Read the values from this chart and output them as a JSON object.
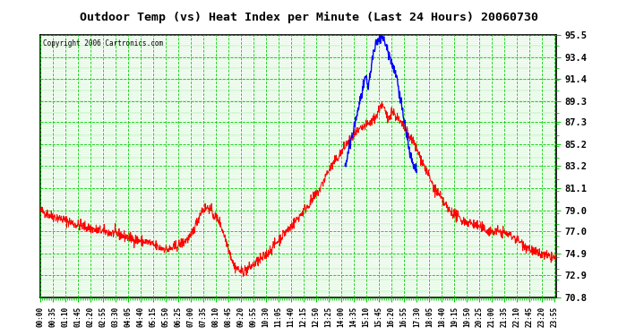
{
  "title": "Outdoor Temp (vs) Heat Index per Minute (Last 24 Hours) 20060730",
  "copyright": "Copyright 2006 Cartronics.com",
  "yticks": [
    70.8,
    72.9,
    74.9,
    77.0,
    79.0,
    81.1,
    83.2,
    85.2,
    87.3,
    89.3,
    91.4,
    93.4,
    95.5
  ],
  "ymin": 70.8,
  "ymax": 95.5,
  "xmin": 0,
  "xmax": 1439,
  "bg_color": "#ffffff",
  "grid_color": "#00cc00",
  "red_color": "#ff0000",
  "blue_color": "#0000ff",
  "title_color": "#000000",
  "border_color": "#000000",
  "noise_seed": 42,
  "red_keyframes": [
    [
      0,
      79.0
    ],
    [
      30,
      78.5
    ],
    [
      60,
      78.2
    ],
    [
      90,
      77.8
    ],
    [
      120,
      77.5
    ],
    [
      150,
      77.2
    ],
    [
      180,
      77.0
    ],
    [
      210,
      76.8
    ],
    [
      240,
      76.5
    ],
    [
      270,
      76.2
    ],
    [
      300,
      76.0
    ],
    [
      330,
      75.5
    ],
    [
      360,
      75.3
    ],
    [
      390,
      75.8
    ],
    [
      420,
      76.5
    ],
    [
      450,
      79.0
    ],
    [
      470,
      79.3
    ],
    [
      485,
      78.5
    ],
    [
      500,
      78.0
    ],
    [
      520,
      76.0
    ],
    [
      540,
      73.8
    ],
    [
      560,
      73.2
    ],
    [
      580,
      73.5
    ],
    [
      600,
      74.0
    ],
    [
      620,
      74.5
    ],
    [
      640,
      75.2
    ],
    [
      660,
      76.0
    ],
    [
      680,
      76.8
    ],
    [
      700,
      77.5
    ],
    [
      720,
      78.3
    ],
    [
      740,
      79.2
    ],
    [
      760,
      80.0
    ],
    [
      780,
      81.0
    ],
    [
      800,
      82.5
    ],
    [
      820,
      83.5
    ],
    [
      840,
      84.5
    ],
    [
      860,
      85.5
    ],
    [
      880,
      86.2
    ],
    [
      900,
      86.8
    ],
    [
      920,
      87.2
    ],
    [
      940,
      88.0
    ],
    [
      950,
      89.0
    ],
    [
      960,
      88.5
    ],
    [
      970,
      87.5
    ],
    [
      980,
      88.5
    ],
    [
      990,
      88.0
    ],
    [
      1000,
      87.5
    ],
    [
      1010,
      87.0
    ],
    [
      1020,
      86.5
    ],
    [
      1030,
      86.0
    ],
    [
      1040,
      85.5
    ],
    [
      1060,
      84.0
    ],
    [
      1080,
      82.5
    ],
    [
      1100,
      81.0
    ],
    [
      1110,
      80.5
    ],
    [
      1120,
      80.0
    ],
    [
      1130,
      79.5
    ],
    [
      1140,
      79.0
    ],
    [
      1150,
      78.8
    ],
    [
      1160,
      78.5
    ],
    [
      1170,
      78.2
    ],
    [
      1180,
      78.0
    ],
    [
      1200,
      77.8
    ],
    [
      1220,
      77.5
    ],
    [
      1240,
      77.2
    ],
    [
      1260,
      77.0
    ],
    [
      1280,
      77.0
    ],
    [
      1300,
      76.8
    ],
    [
      1320,
      76.5
    ],
    [
      1340,
      76.0
    ],
    [
      1360,
      75.5
    ],
    [
      1380,
      75.0
    ],
    [
      1400,
      74.8
    ],
    [
      1420,
      74.6
    ],
    [
      1439,
      74.5
    ]
  ],
  "blue_keyframes": [
    [
      850,
      83.0
    ],
    [
      860,
      84.5
    ],
    [
      870,
      86.0
    ],
    [
      880,
      87.5
    ],
    [
      890,
      89.0
    ],
    [
      900,
      90.5
    ],
    [
      910,
      91.5
    ],
    [
      915,
      90.5
    ],
    [
      920,
      91.8
    ],
    [
      925,
      93.0
    ],
    [
      930,
      93.8
    ],
    [
      935,
      94.5
    ],
    [
      940,
      95.0
    ],
    [
      945,
      95.3
    ],
    [
      950,
      95.5
    ],
    [
      955,
      95.3
    ],
    [
      960,
      95.0
    ],
    [
      965,
      94.5
    ],
    [
      970,
      94.0
    ],
    [
      975,
      93.5
    ],
    [
      980,
      93.0
    ],
    [
      985,
      92.5
    ],
    [
      990,
      92.0
    ],
    [
      995,
      91.5
    ],
    [
      1000,
      90.5
    ],
    [
      1005,
      89.5
    ],
    [
      1010,
      88.5
    ],
    [
      1015,
      87.5
    ],
    [
      1020,
      86.5
    ],
    [
      1025,
      85.5
    ],
    [
      1030,
      84.5
    ],
    [
      1035,
      83.8
    ],
    [
      1040,
      83.2
    ],
    [
      1045,
      83.0
    ],
    [
      1050,
      82.8
    ]
  ]
}
